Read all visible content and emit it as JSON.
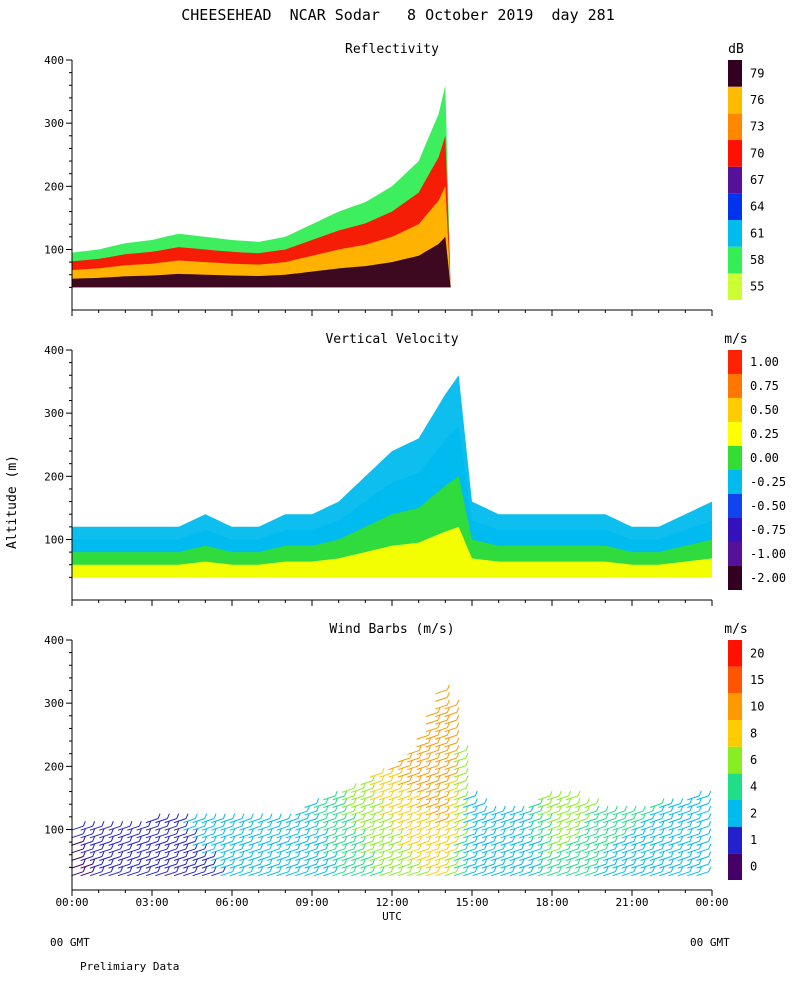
{
  "page": {
    "title": "CHEESEHEAD  NCAR Sodar   8 October 2019  day 281",
    "ylabel": "Altitude (m)",
    "xlabel": "UTC",
    "bottom_left": "00 GMT",
    "bottom_right": "00 GMT",
    "footnote": "Prelimiary Data"
  },
  "chart_data": [
    {
      "type": "heatmap",
      "title": "Reflectivity",
      "units": "dB",
      "xlim": [
        0,
        24
      ],
      "ylim": [
        20,
        400
      ],
      "yticks": [
        100,
        200,
        300,
        400
      ],
      "colorbar": {
        "labels": [
          "55",
          "58",
          "61",
          "64",
          "67",
          "70",
          "73",
          "76",
          "79"
        ],
        "colors": [
          "#ccff33",
          "#33ee55",
          "#00bbee",
          "#0033ee",
          "#551199",
          "#ff1100",
          "#ff8800",
          "#ffbb00",
          "#330022"
        ]
      },
      "profile": [
        {
          "t": 0,
          "top": 95
        },
        {
          "t": 1,
          "top": 100
        },
        {
          "t": 2,
          "top": 110
        },
        {
          "t": 3,
          "top": 115
        },
        {
          "t": 4,
          "top": 125
        },
        {
          "t": 5,
          "top": 120
        },
        {
          "t": 6,
          "top": 115
        },
        {
          "t": 7,
          "top": 112
        },
        {
          "t": 8,
          "top": 120
        },
        {
          "t": 9,
          "top": 140
        },
        {
          "t": 10,
          "top": 160
        },
        {
          "t": 11,
          "top": 175
        },
        {
          "t": 12,
          "top": 200
        },
        {
          "t": 13,
          "top": 240
        },
        {
          "t": 13.8,
          "top": 320
        },
        {
          "t": 14.2,
          "top": 400
        }
      ]
    },
    {
      "type": "heatmap",
      "title": "Vertical Velocity",
      "units": "m/s",
      "xlim": [
        0,
        24
      ],
      "ylim": [
        20,
        400
      ],
      "yticks": [
        100,
        200,
        300,
        400
      ],
      "colorbar": {
        "labels": [
          "-2.00",
          "-1.00",
          "-0.75",
          "-0.50",
          "-0.25",
          "0.00",
          "0.25",
          "0.50",
          "0.75",
          "1.00"
        ],
        "colors": [
          "#330022",
          "#551199",
          "#3311bb",
          "#1144ee",
          "#00bbee",
          "#33dd33",
          "#ffff00",
          "#ffcc00",
          "#ff7700",
          "#ff2200"
        ]
      },
      "profile": [
        {
          "t": 0,
          "top": 120
        },
        {
          "t": 1,
          "top": 120
        },
        {
          "t": 2,
          "top": 120
        },
        {
          "t": 3,
          "top": 120
        },
        {
          "t": 4,
          "top": 120
        },
        {
          "t": 5,
          "top": 140
        },
        {
          "t": 6,
          "top": 120
        },
        {
          "t": 7,
          "top": 120
        },
        {
          "t": 8,
          "top": 140
        },
        {
          "t": 9,
          "top": 140
        },
        {
          "t": 10,
          "top": 160
        },
        {
          "t": 11,
          "top": 200
        },
        {
          "t": 12,
          "top": 240
        },
        {
          "t": 13,
          "top": 260
        },
        {
          "t": 14,
          "top": 330
        },
        {
          "t": 14.5,
          "top": 360
        },
        {
          "t": 15,
          "top": 160
        },
        {
          "t": 16,
          "top": 140
        },
        {
          "t": 17,
          "top": 140
        },
        {
          "t": 18,
          "top": 140
        },
        {
          "t": 19,
          "top": 140
        },
        {
          "t": 20,
          "top": 140
        },
        {
          "t": 21,
          "top": 120
        },
        {
          "t": 22,
          "top": 120
        },
        {
          "t": 23,
          "top": 140
        },
        {
          "t": 24,
          "top": 160
        }
      ]
    },
    {
      "type": "scatter",
      "title": "Wind Barbs (m/s)",
      "units": "m/s",
      "xlim": [
        0,
        24
      ],
      "ylim": [
        20,
        400
      ],
      "yticks": [
        100,
        200,
        300,
        400
      ],
      "xticks": [
        "00:00",
        "03:00",
        "06:00",
        "09:00",
        "12:00",
        "15:00",
        "18:00",
        "21:00",
        "00:00"
      ],
      "colorbar": {
        "labels": [
          "0",
          "1",
          "2",
          "4",
          "6",
          "8",
          "10",
          "15",
          "20"
        ],
        "colors": [
          "#440066",
          "#2222cc",
          "#00bbee",
          "#22dd88",
          "#88ee22",
          "#ffcc00",
          "#ff9900",
          "#ff5500",
          "#ff1100"
        ]
      },
      "profile": [
        {
          "t": 0,
          "top": 110,
          "speed": 1
        },
        {
          "t": 2,
          "top": 110,
          "speed": 2
        },
        {
          "t": 4,
          "top": 120,
          "speed": 2
        },
        {
          "t": 6,
          "top": 120,
          "speed": 3
        },
        {
          "t": 8,
          "top": 120,
          "speed": 3
        },
        {
          "t": 9,
          "top": 140,
          "speed": 4
        },
        {
          "t": 10,
          "top": 160,
          "speed": 6
        },
        {
          "t": 11,
          "top": 180,
          "speed": 8
        },
        {
          "t": 12,
          "top": 200,
          "speed": 10
        },
        {
          "t": 13,
          "top": 240,
          "speed": 12
        },
        {
          "t": 14,
          "top": 340,
          "speed": 14
        },
        {
          "t": 15,
          "top": 140,
          "speed": 3
        },
        {
          "t": 17,
          "top": 130,
          "speed": 3
        },
        {
          "t": 18,
          "top": 160,
          "speed": 8
        },
        {
          "t": 19,
          "top": 150,
          "speed": 7
        },
        {
          "t": 20,
          "top": 130,
          "speed": 5
        },
        {
          "t": 22,
          "top": 140,
          "speed": 4
        },
        {
          "t": 24,
          "top": 160,
          "speed": 4
        }
      ]
    }
  ]
}
